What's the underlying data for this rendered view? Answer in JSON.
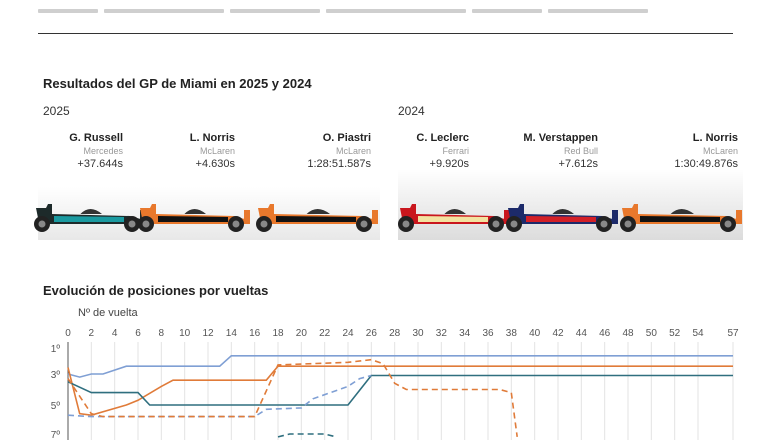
{
  "sections": {
    "results_title": "Resultados del GP de Miami en 2025 y 2024",
    "laps_title": "Evolución de posiciones por vueltas"
  },
  "results": [
    {
      "year": "2025",
      "drivers": [
        {
          "name": "G. Russell",
          "team": "Mercedes",
          "time": "+37.644s",
          "car_colors": [
            "#1d2a2a",
            "#1a9aa0"
          ]
        },
        {
          "name": "L. Norris",
          "team": "McLaren",
          "time": "+4.630s",
          "car_colors": [
            "#e8782c",
            "#111111"
          ]
        },
        {
          "name": "O. Piastri",
          "team": "McLaren",
          "time": "1:28:51.587s",
          "car_colors": [
            "#e8782c",
            "#111111"
          ]
        }
      ]
    },
    {
      "year": "2024",
      "drivers": [
        {
          "name": "C. Leclerc",
          "team": "Ferrari",
          "time": "+9.920s",
          "car_colors": [
            "#c9161d",
            "#f2e2a0"
          ]
        },
        {
          "name": "M. Verstappen",
          "team": "Red Bull",
          "time": "+7.612s",
          "car_colors": [
            "#1c2a6a",
            "#d32027"
          ]
        },
        {
          "name": "L. Norris",
          "team": "McLaren",
          "time": "1:30:49.876s",
          "car_colors": [
            "#e8782c",
            "#111111"
          ]
        }
      ]
    }
  ],
  "chart_data": {
    "type": "line",
    "xlabel": "Nº de vuelta",
    "x_ticks": [
      0,
      2,
      4,
      6,
      8,
      10,
      12,
      14,
      16,
      18,
      20,
      22,
      24,
      26,
      28,
      30,
      32,
      34,
      36,
      38,
      40,
      42,
      44,
      46,
      48,
      50,
      52,
      54,
      57
    ],
    "xlim": [
      0,
      57
    ],
    "y_ticks": [
      "1º",
      "3º",
      "5º",
      "7º"
    ],
    "ylim": [
      1,
      7
    ],
    "y_inverted": true,
    "series": [
      {
        "color": "#7f9fd4",
        "dashed": false,
        "points": [
          [
            0,
            3
          ],
          [
            1,
            3.2
          ],
          [
            2,
            3
          ],
          [
            3,
            3
          ],
          [
            5,
            2.4
          ],
          [
            13,
            2.4
          ],
          [
            14,
            1.6
          ],
          [
            57,
            1.6
          ]
        ]
      },
      {
        "color": "#e07b39",
        "dashed": false,
        "points": [
          [
            0,
            2.5
          ],
          [
            1,
            5.6
          ],
          [
            2,
            5.7
          ],
          [
            5,
            5
          ],
          [
            6,
            4.7
          ],
          [
            8,
            3.8
          ],
          [
            9,
            3.4
          ],
          [
            17,
            3.4
          ],
          [
            18,
            2.4
          ],
          [
            57,
            2.4
          ]
        ]
      },
      {
        "color": "#2f6f7f",
        "dashed": false,
        "points": [
          [
            0,
            3.5
          ],
          [
            2,
            4.2
          ],
          [
            6,
            4.2
          ],
          [
            7,
            5
          ],
          [
            24,
            5
          ],
          [
            26,
            3.1
          ],
          [
            57,
            3.1
          ]
        ]
      },
      {
        "color": "#7f9fd4",
        "dashed": true,
        "points": [
          [
            0,
            5.7
          ],
          [
            2,
            5.8
          ],
          [
            16,
            5.8
          ],
          [
            17,
            5.3
          ],
          [
            20,
            5.2
          ],
          [
            21,
            4.6
          ],
          [
            24,
            3.8
          ],
          [
            25,
            3.3
          ],
          [
            26,
            3.1
          ]
        ]
      },
      {
        "color": "#e07b39",
        "dashed": true,
        "points": [
          [
            0,
            3.3
          ],
          [
            2,
            5.6
          ],
          [
            3,
            5.8
          ],
          [
            16,
            5.8
          ],
          [
            18,
            2.3
          ],
          [
            24,
            2.1
          ],
          [
            26,
            1.9
          ],
          [
            27,
            2.2
          ],
          [
            28,
            3.6
          ],
          [
            29,
            4
          ],
          [
            37,
            4
          ],
          [
            38,
            4.2
          ],
          [
            38.5,
            7.2
          ]
        ]
      },
      {
        "color": "#2f6f7f",
        "dashed": true,
        "points": [
          [
            18,
            7.2
          ],
          [
            19,
            7
          ],
          [
            22,
            7
          ],
          [
            23,
            7.2
          ]
        ]
      }
    ]
  }
}
